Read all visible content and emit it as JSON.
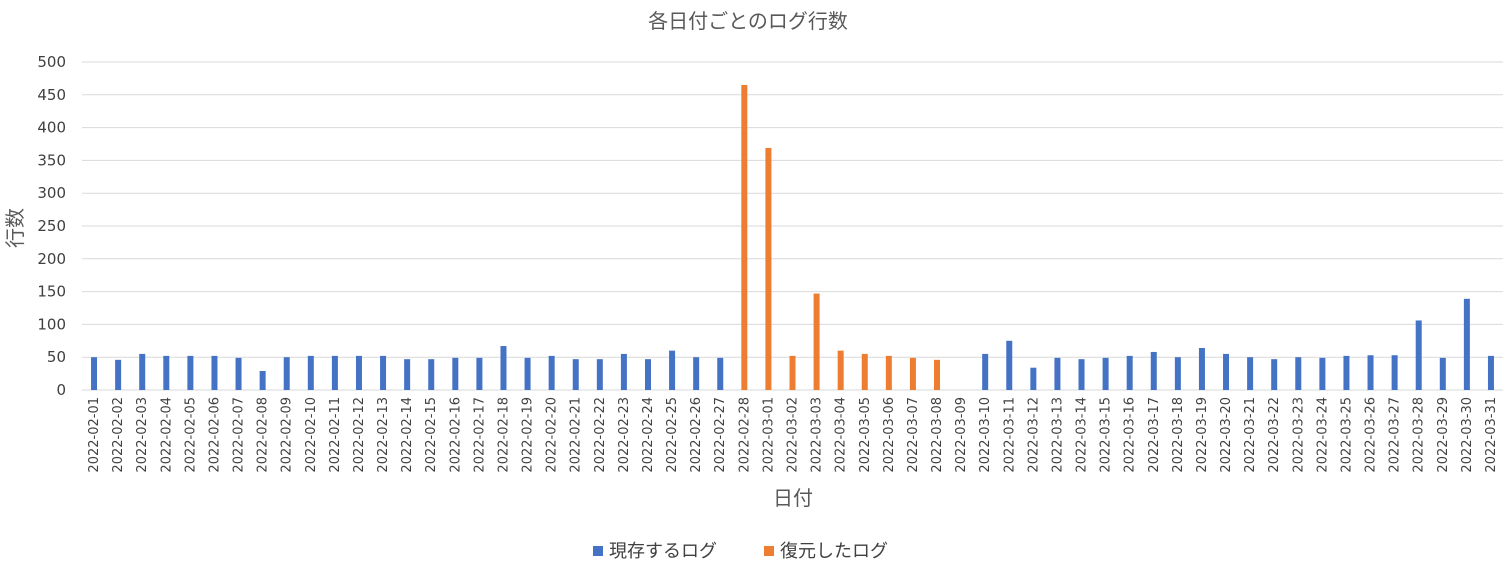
{
  "chart_data": {
    "type": "bar",
    "title": "各日付ごとのログ行数",
    "xlabel": "日付",
    "ylabel": "行数",
    "ylim": [
      0,
      500
    ],
    "yticks": [
      0,
      50,
      100,
      150,
      200,
      250,
      300,
      350,
      400,
      450,
      500
    ],
    "grid": true,
    "legend_position": "bottom",
    "categories": [
      "2022-02-01",
      "2022-02-02",
      "2022-02-03",
      "2022-02-04",
      "2022-02-05",
      "2022-02-06",
      "2022-02-07",
      "2022-02-08",
      "2022-02-09",
      "2022-02-10",
      "2022-02-11",
      "2022-02-12",
      "2022-02-13",
      "2022-02-14",
      "2022-02-15",
      "2022-02-16",
      "2022-02-17",
      "2022-02-18",
      "2022-02-19",
      "2022-02-20",
      "2022-02-21",
      "2022-02-22",
      "2022-02-23",
      "2022-02-24",
      "2022-02-25",
      "2022-02-26",
      "2022-02-27",
      "2022-02-28",
      "2022-03-01",
      "2022-03-02",
      "2022-03-03",
      "2022-03-04",
      "2022-03-05",
      "2022-03-06",
      "2022-03-07",
      "2022-03-08",
      "2022-03-09",
      "2022-03-10",
      "2022-03-11",
      "2022-03-12",
      "2022-03-13",
      "2022-03-14",
      "2022-03-15",
      "2022-03-16",
      "2022-03-17",
      "2022-03-18",
      "2022-03-19",
      "2022-03-20",
      "2022-03-21",
      "2022-03-22",
      "2022-03-23",
      "2022-03-24",
      "2022-03-25",
      "2022-03-26",
      "2022-03-27",
      "2022-03-28",
      "2022-03-29",
      "2022-03-30",
      "2022-03-31"
    ],
    "series": [
      {
        "name": "現存するログ",
        "color": "#4472c4",
        "values": [
          50,
          46,
          55,
          52,
          52,
          52,
          49,
          29,
          50,
          52,
          52,
          52,
          52,
          47,
          47,
          49,
          49,
          67,
          49,
          52,
          47,
          47,
          55,
          47,
          60,
          50,
          49,
          null,
          null,
          null,
          null,
          null,
          null,
          null,
          null,
          null,
          null,
          55,
          75,
          34,
          49,
          47,
          49,
          52,
          58,
          50,
          64,
          55,
          50,
          47,
          50,
          49,
          52,
          53,
          53,
          106,
          49,
          139,
          52
        ]
      },
      {
        "name": "復元したログ",
        "color": "#ed7d31",
        "values": [
          null,
          null,
          null,
          null,
          null,
          null,
          null,
          null,
          null,
          null,
          null,
          null,
          null,
          null,
          null,
          null,
          null,
          null,
          null,
          null,
          null,
          null,
          null,
          null,
          null,
          null,
          null,
          465,
          369,
          52,
          147,
          60,
          55,
          52,
          49,
          46,
          null,
          null,
          null,
          null,
          null,
          null,
          null,
          null,
          null,
          null,
          null,
          null,
          null,
          null,
          null,
          null,
          null,
          null,
          null,
          null,
          null,
          null,
          null
        ]
      }
    ]
  }
}
